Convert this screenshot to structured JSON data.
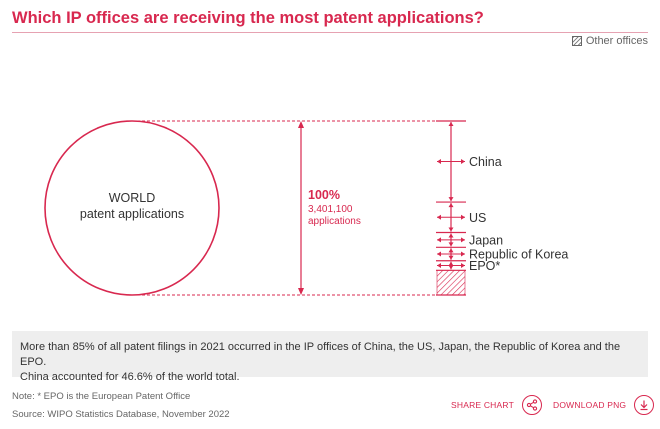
{
  "title": "Which IP offices are receiving the most patent applications?",
  "legend": {
    "other_offices": "Other offices"
  },
  "colors": {
    "accent": "#d8284f",
    "text": "#333333",
    "muted": "#666666"
  },
  "chart_data": {
    "type": "proportional-stack",
    "title": "Which IP offices are receiving the most patent applications?",
    "world": {
      "label_line1": "WORLD",
      "label_line2": "patent applications",
      "percent_label": "100%",
      "count_label": "3,401,100",
      "unit_label": "applications",
      "total": 3401100
    },
    "segments": [
      {
        "name": "China",
        "share": 46.6
      },
      {
        "name": "US",
        "share": 17.5
      },
      {
        "name": "Japan",
        "share": 8.5
      },
      {
        "name": "Republic of Korea",
        "share": 7.7
      },
      {
        "name": "EPO*",
        "share": 5.5
      },
      {
        "name": "Other offices",
        "share": 14.2,
        "hatched": true
      }
    ]
  },
  "summary": {
    "line1": "More than 85% of all patent filings in 2021 occurred in the IP offices of China, the US, Japan, the Republic of Korea and the EPO.",
    "line2": "China accounted for 46.6% of the world total."
  },
  "footer": {
    "note": "Note: * EPO is the European Patent Office",
    "source": "Source: WIPO Statistics Database, November 2022",
    "share_label": "SHARE CHART",
    "download_label": "DOWNLOAD PNG"
  }
}
